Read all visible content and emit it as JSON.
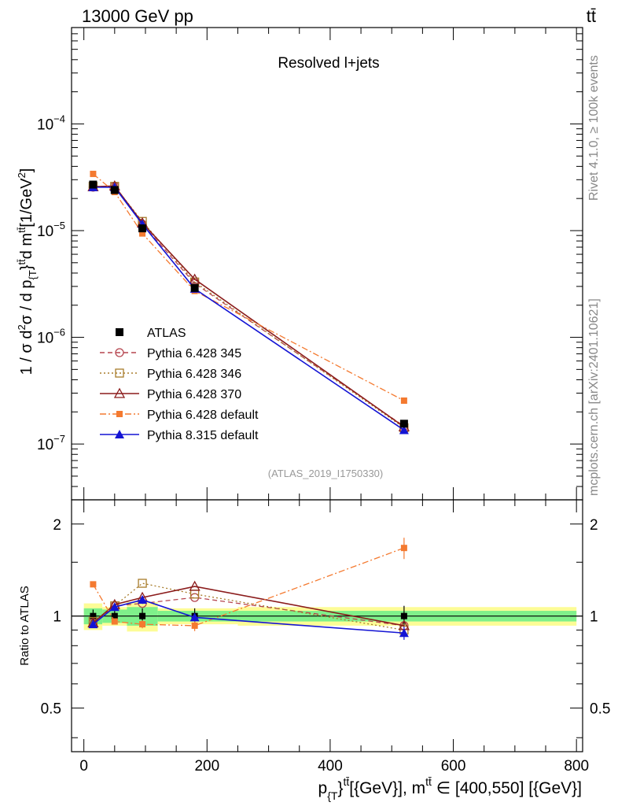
{
  "header": {
    "energy_label": "13000 GeV pp",
    "process_label": "tt̄"
  },
  "side_labels": {
    "rivet": "Rivet 4.1.0, ≥ 100k events",
    "site": "mcplots.cern.ch [arXiv:2401.10621]"
  },
  "colors": {
    "ATLAS": "#000000",
    "Pythia 6.428 345": "#b5454f",
    "Pythia 6.428 346": "#a87c2b",
    "Pythia 6.428 370": "#8b1c1c",
    "Pythia 6.428 default": "#f47a30",
    "Pythia 8.315 default": "#1414d4",
    "band_inner": "#7ff08a",
    "band_outer": "#fcfc96"
  },
  "chart_data": [
    {
      "type": "line",
      "title": "Resolved l+jets",
      "analysis_tag": "(ATLAS_2019_I1750330)",
      "yscale": "log",
      "ylim": [
        3e-08,
        0.0008
      ],
      "xlim": [
        -20,
        810
      ],
      "yticks": [
        {
          "value": 1e-07,
          "base": "10",
          "exp": "−7"
        },
        {
          "value": 1e-06,
          "base": "10",
          "exp": "−6"
        },
        {
          "value": 1e-05,
          "base": "10",
          "exp": "−5"
        },
        {
          "value": 0.0001,
          "base": "10",
          "exp": "−4"
        }
      ],
      "ylabel": {
        "prefix": "1 / σ d",
        "sup1": "2",
        "mid1": "σ / d p",
        "sub1": "{T",
        "mid2": "}",
        "sup2": "tt̄",
        "mid3": "d m",
        "sup3": "tt̄",
        "unit": "[1/GeV",
        "unitsup": "2",
        "unitend": "]"
      },
      "x": [
        15,
        50,
        95,
        180,
        520
      ],
      "series": [
        {
          "name": "ATLAS",
          "marker": "square",
          "dash": "none",
          "values": [
            2.7e-05,
            2.4e-05,
            1.05e-05,
            2.9e-06,
            1.55e-07
          ],
          "errors": [
            0.05,
            0.04,
            0.06,
            0.06,
            0.08
          ]
        },
        {
          "name": "Pythia 6.428 345",
          "marker": "circle-open",
          "dash": "dashed",
          "values": [
            2.55e-05,
            2.6e-05,
            1.15e-05,
            3.2e-06,
            1.47e-07
          ]
        },
        {
          "name": "Pythia 6.428 346",
          "marker": "square-open",
          "dash": "dotted",
          "values": [
            2.6e-05,
            2.6e-05,
            1.22e-05,
            3.3e-06,
            1.42e-07
          ]
        },
        {
          "name": "Pythia 6.428 370",
          "marker": "triangle-open",
          "dash": "solid",
          "values": [
            2.58e-05,
            2.62e-05,
            1.18e-05,
            3.5e-06,
            1.45e-07
          ]
        },
        {
          "name": "Pythia 6.428 default",
          "marker": "square-small",
          "dash": "dashdot",
          "values": [
            3.4e-05,
            2.3e-05,
            9.4e-06,
            2.72e-06,
            2.55e-07
          ]
        },
        {
          "name": "Pythia 8.315 default",
          "marker": "triangle",
          "dash": "solid",
          "values": [
            2.55e-05,
            2.55e-05,
            1.15e-05,
            2.85e-06,
            1.35e-07
          ]
        }
      ]
    },
    {
      "type": "line",
      "ylabel": "Ratio to ATLAS",
      "yscale": "log",
      "ylim": [
        0.36,
        2.4
      ],
      "xlim": [
        -20,
        810
      ],
      "yticks": [
        {
          "value": 0.5,
          "label": "0.5"
        },
        {
          "value": 1,
          "label": "1"
        },
        {
          "value": 2,
          "label": "2"
        }
      ],
      "xticks": [
        0,
        200,
        400,
        600,
        800
      ],
      "xlabel": {
        "p1": "p",
        "sub1": "{T",
        "p2": "}",
        "sup1": "tt̄",
        "p3": "[{GeV}], m",
        "sup2": "tt̄",
        "p4": " ∈ [400,550] [{GeV}]"
      },
      "bins": [
        {
          "lo": 0,
          "hi": 30,
          "inner": 0.06,
          "outer": 0.1
        },
        {
          "lo": 30,
          "hi": 70,
          "inner": 0.05,
          "outer": 0.07
        },
        {
          "lo": 70,
          "hi": 120,
          "inner": 0.07,
          "outer": 0.11
        },
        {
          "lo": 120,
          "hi": 250,
          "inner": 0.04,
          "outer": 0.06
        },
        {
          "lo": 250,
          "hi": 800,
          "inner": 0.04,
          "outer": 0.07
        }
      ],
      "series": [
        {
          "name": "Pythia 6.428 345",
          "values": [
            0.95,
            1.08,
            1.1,
            1.15,
            0.93
          ]
        },
        {
          "name": "Pythia 6.428 346",
          "values": [
            0.96,
            1.08,
            1.28,
            1.18,
            0.9
          ]
        },
        {
          "name": "Pythia 6.428 370",
          "values": [
            0.95,
            1.09,
            1.15,
            1.25,
            0.93
          ]
        },
        {
          "name": "Pythia 6.428 default",
          "values": [
            1.27,
            0.96,
            0.94,
            0.93,
            1.67
          ],
          "errors": [
            0.02,
            0.02,
            0.03,
            0.04,
            0.08
          ]
        },
        {
          "name": "Pythia 8.315 default",
          "values": [
            0.94,
            1.07,
            1.13,
            0.99,
            0.88
          ],
          "errors": [
            0.02,
            0.02,
            0.03,
            0.03,
            0.05
          ]
        }
      ]
    }
  ]
}
